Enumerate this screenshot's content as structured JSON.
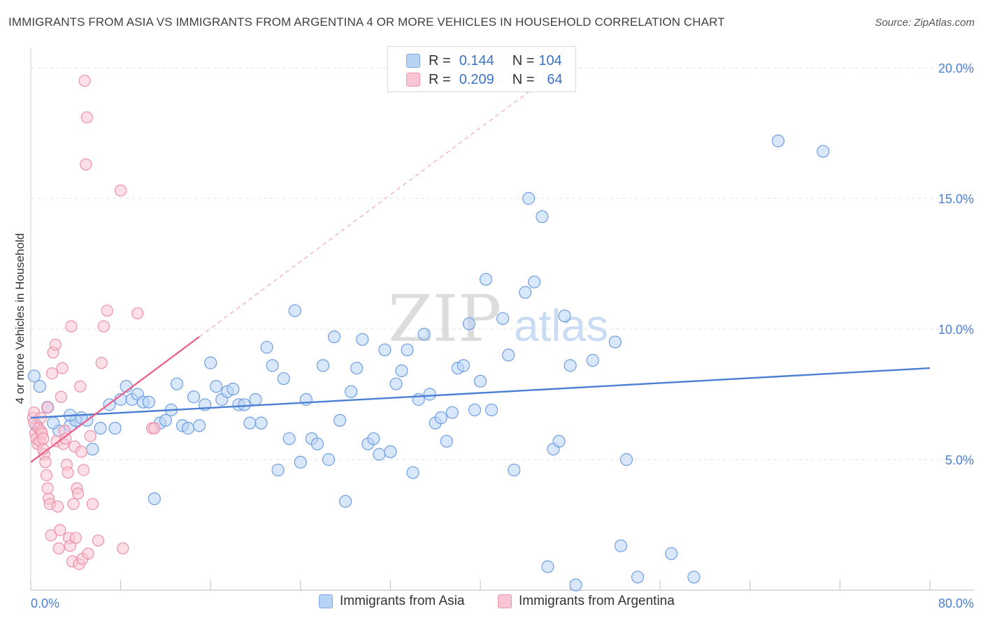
{
  "title": "IMMIGRANTS FROM ASIA VS IMMIGRANTS FROM ARGENTINA 4 OR MORE VEHICLES IN HOUSEHOLD CORRELATION CHART",
  "source": "Source: ZipAtlas.com",
  "watermark": {
    "zip": "ZIP",
    "atlas": "atlas"
  },
  "legend": {
    "r_label": "R =",
    "n_label": "N =",
    "items": [
      {
        "r": "0.144",
        "n": "104",
        "color": "#b9d3f5",
        "border": "#7fa9e6"
      },
      {
        "r": "0.209",
        "n": "64",
        "color": "#f9c4d3",
        "border": "#ee94ae"
      }
    ]
  },
  "bottom_legend": [
    {
      "label": "Immigrants from Asia",
      "color": "#b9d3f5",
      "border": "#7fa9e6"
    },
    {
      "label": "Immigrants from Argentina",
      "color": "#f9c4d3",
      "border": "#ee94ae"
    }
  ],
  "chart_data": {
    "type": "scatter",
    "title": "IMMIGRANTS FROM ASIA VS IMMIGRANTS FROM ARGENTINA 4 OR MORE VEHICLES IN HOUSEHOLD CORRELATION CHART",
    "xlabel": "",
    "ylabel": "4 or more Vehicles in Household",
    "xlim": [
      0,
      80
    ],
    "ylim": [
      0,
      20
    ],
    "x_tick_labels": [
      "0.0%",
      "80.0%"
    ],
    "y_tick_labels": [
      "5.0%",
      "10.0%",
      "15.0%",
      "20.0%"
    ],
    "y_ticks": [
      5,
      10,
      15,
      20
    ],
    "grid": true,
    "colors": {
      "asia": "#4a7fd4",
      "argentina": "#e8668f",
      "axis_label": "#4a7fd4"
    },
    "series": [
      {
        "name": "Immigrants from Asia",
        "r": 0.144,
        "n": 104,
        "trend": {
          "x": [
            0,
            80
          ],
          "y": [
            6.6,
            8.5
          ]
        },
        "points": [
          [
            0.3,
            8.2
          ],
          [
            0.8,
            7.8
          ],
          [
            1.5,
            7.0
          ],
          [
            2.5,
            6.1
          ],
          [
            2.0,
            6.4
          ],
          [
            3.5,
            6.3
          ],
          [
            4.0,
            6.5
          ],
          [
            5.0,
            6.5
          ],
          [
            3.5,
            6.7
          ],
          [
            4.5,
            6.6
          ],
          [
            5.5,
            5.4
          ],
          [
            6.2,
            6.2
          ],
          [
            7.0,
            7.1
          ],
          [
            7.5,
            6.2
          ],
          [
            8.0,
            7.3
          ],
          [
            8.5,
            7.8
          ],
          [
            9.0,
            7.3
          ],
          [
            9.5,
            7.5
          ],
          [
            10.0,
            7.2
          ],
          [
            10.5,
            7.2
          ],
          [
            11.0,
            3.5
          ],
          [
            11.5,
            6.4
          ],
          [
            12.0,
            6.5
          ],
          [
            12.5,
            6.9
          ],
          [
            13.0,
            7.9
          ],
          [
            13.5,
            6.3
          ],
          [
            14.0,
            6.2
          ],
          [
            14.5,
            7.4
          ],
          [
            15.0,
            6.3
          ],
          [
            15.5,
            7.1
          ],
          [
            16.0,
            8.7
          ],
          [
            16.5,
            7.8
          ],
          [
            17.0,
            7.3
          ],
          [
            17.5,
            7.6
          ],
          [
            18.0,
            7.7
          ],
          [
            18.5,
            7.1
          ],
          [
            19.0,
            7.1
          ],
          [
            19.5,
            6.4
          ],
          [
            20.0,
            7.3
          ],
          [
            20.5,
            6.4
          ],
          [
            21.0,
            9.3
          ],
          [
            21.5,
            8.6
          ],
          [
            22.0,
            4.6
          ],
          [
            22.5,
            8.1
          ],
          [
            23.0,
            5.8
          ],
          [
            23.5,
            10.7
          ],
          [
            24.0,
            4.9
          ],
          [
            24.5,
            7.3
          ],
          [
            25.0,
            5.8
          ],
          [
            25.5,
            5.6
          ],
          [
            26.0,
            8.6
          ],
          [
            26.5,
            5.0
          ],
          [
            27.0,
            9.7
          ],
          [
            27.5,
            6.5
          ],
          [
            28.0,
            3.4
          ],
          [
            28.5,
            7.6
          ],
          [
            29.0,
            8.5
          ],
          [
            29.5,
            9.6
          ],
          [
            30.0,
            5.6
          ],
          [
            30.5,
            5.8
          ],
          [
            31.0,
            5.2
          ],
          [
            31.5,
            9.2
          ],
          [
            32.0,
            5.3
          ],
          [
            32.5,
            7.9
          ],
          [
            33.0,
            8.4
          ],
          [
            33.5,
            9.2
          ],
          [
            34.0,
            4.5
          ],
          [
            34.5,
            7.3
          ],
          [
            35.0,
            9.8
          ],
          [
            35.5,
            7.5
          ],
          [
            36.0,
            6.4
          ],
          [
            36.5,
            6.6
          ],
          [
            37.0,
            5.7
          ],
          [
            37.5,
            6.8
          ],
          [
            38.0,
            8.5
          ],
          [
            38.5,
            8.6
          ],
          [
            39.0,
            10.2
          ],
          [
            39.5,
            6.9
          ],
          [
            40.0,
            8.0
          ],
          [
            40.5,
            11.9
          ],
          [
            41.0,
            6.9
          ],
          [
            42.0,
            10.4
          ],
          [
            42.5,
            9.0
          ],
          [
            43.0,
            4.6
          ],
          [
            44.0,
            11.4
          ],
          [
            44.3,
            15.0
          ],
          [
            44.8,
            11.8
          ],
          [
            45.5,
            14.3
          ],
          [
            46.0,
            0.9
          ],
          [
            46.5,
            5.4
          ],
          [
            47.0,
            5.7
          ],
          [
            47.5,
            10.5
          ],
          [
            48.0,
            8.6
          ],
          [
            48.5,
            0.2
          ],
          [
            50.0,
            8.8
          ],
          [
            52.0,
            9.5
          ],
          [
            52.5,
            1.7
          ],
          [
            53.0,
            5.0
          ],
          [
            54.0,
            0.5
          ],
          [
            57.0,
            1.4
          ],
          [
            59.0,
            0.5
          ],
          [
            66.5,
            17.2
          ],
          [
            70.5,
            16.8
          ],
          [
            0.5,
            6.3
          ]
        ]
      },
      {
        "name": "Immigrants from Argentina",
        "r": 0.209,
        "n": 64,
        "trend": {
          "x": [
            0,
            15
          ],
          "y": [
            4.9,
            9.7
          ]
        },
        "points": [
          [
            0.2,
            6.6
          ],
          [
            0.3,
            6.4
          ],
          [
            0.4,
            6.0
          ],
          [
            0.5,
            5.8
          ],
          [
            0.6,
            5.6
          ],
          [
            0.7,
            6.2
          ],
          [
            0.8,
            5.7
          ],
          [
            0.9,
            6.1
          ],
          [
            1.0,
            6.0
          ],
          [
            1.1,
            5.8
          ],
          [
            1.2,
            5.2
          ],
          [
            1.3,
            4.9
          ],
          [
            1.4,
            4.4
          ],
          [
            1.5,
            3.9
          ],
          [
            1.6,
            3.5
          ],
          [
            1.7,
            3.3
          ],
          [
            1.8,
            2.1
          ],
          [
            1.9,
            8.3
          ],
          [
            2.0,
            9.1
          ],
          [
            2.2,
            9.4
          ],
          [
            2.3,
            5.7
          ],
          [
            2.4,
            3.2
          ],
          [
            2.5,
            1.6
          ],
          [
            2.6,
            2.3
          ],
          [
            2.7,
            7.4
          ],
          [
            2.8,
            8.5
          ],
          [
            2.9,
            5.6
          ],
          [
            3.0,
            6.1
          ],
          [
            3.1,
            5.8
          ],
          [
            3.2,
            4.8
          ],
          [
            3.3,
            4.5
          ],
          [
            3.4,
            2.0
          ],
          [
            3.5,
            1.7
          ],
          [
            3.6,
            10.1
          ],
          [
            3.7,
            1.1
          ],
          [
            3.8,
            3.3
          ],
          [
            3.9,
            5.5
          ],
          [
            4.0,
            2.0
          ],
          [
            4.1,
            3.9
          ],
          [
            4.2,
            3.7
          ],
          [
            4.3,
            1.0
          ],
          [
            4.4,
            7.8
          ],
          [
            4.5,
            5.3
          ],
          [
            4.6,
            1.2
          ],
          [
            4.7,
            4.6
          ],
          [
            4.8,
            19.5
          ],
          [
            4.9,
            16.3
          ],
          [
            5.0,
            18.1
          ],
          [
            5.1,
            1.4
          ],
          [
            5.3,
            5.9
          ],
          [
            5.5,
            3.3
          ],
          [
            6.0,
            1.9
          ],
          [
            6.3,
            8.7
          ],
          [
            6.5,
            10.1
          ],
          [
            6.8,
            10.7
          ],
          [
            8.0,
            15.3
          ],
          [
            8.2,
            1.6
          ],
          [
            9.5,
            10.6
          ],
          [
            10.8,
            6.2
          ],
          [
            11.0,
            6.2
          ],
          [
            0.3,
            6.8
          ],
          [
            1.5,
            7.0
          ],
          [
            0.9,
            6.6
          ],
          [
            1.1,
            5.4
          ]
        ]
      }
    ]
  }
}
